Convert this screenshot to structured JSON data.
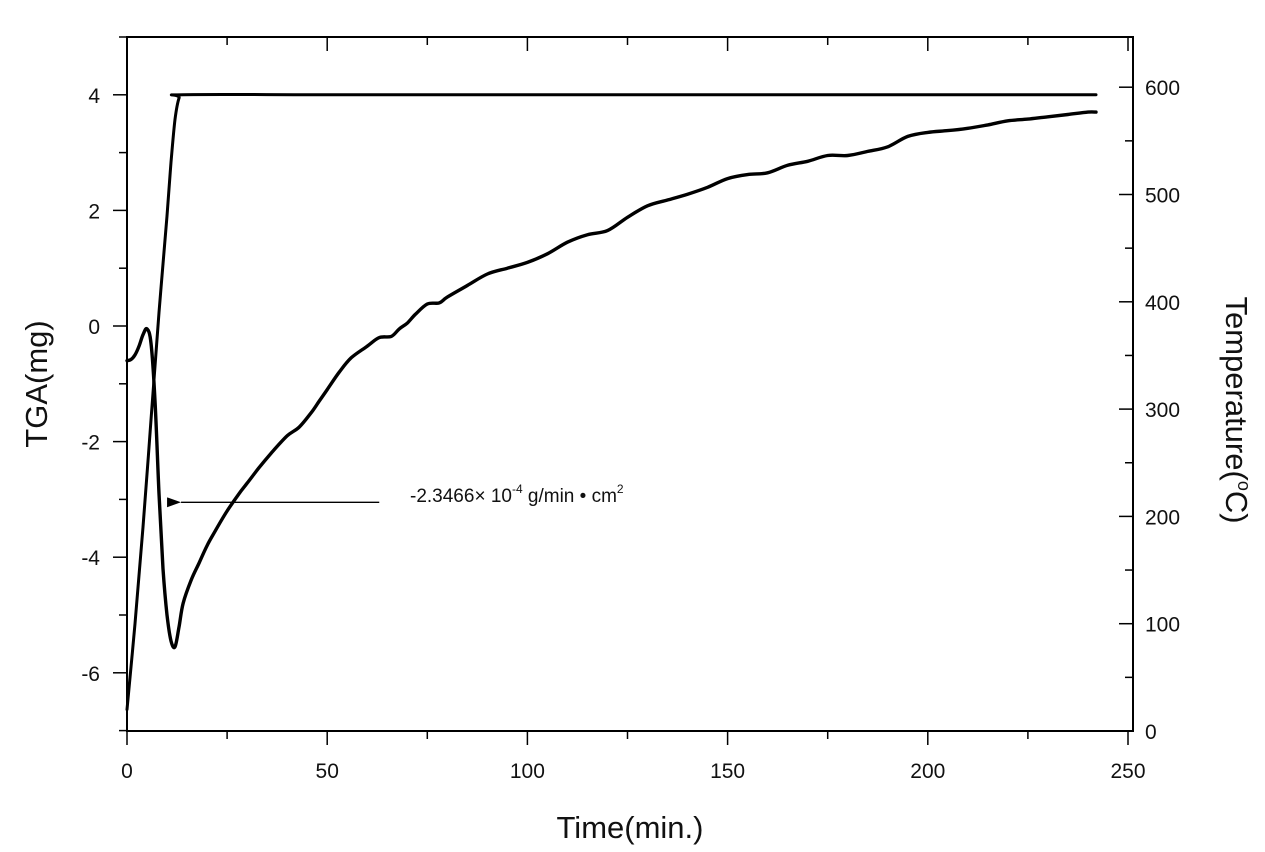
{
  "chart_data": {
    "type": "line",
    "title": "",
    "xlabel": "Time(min.)",
    "ylabel": "TGA(mg)",
    "y2label": "Temperature(°C)",
    "xlim": [
      0,
      250
    ],
    "ylim": [
      -7,
      5
    ],
    "y2lim": [
      0,
      650
    ],
    "grid": false,
    "legend": "none",
    "x_ticks": [
      0,
      50,
      100,
      150,
      200,
      250
    ],
    "x_tick_labels": [
      "0",
      "50",
      "100",
      "150",
      "200",
      "250"
    ],
    "y_ticks": [
      -6,
      -4,
      -2,
      0,
      2,
      4
    ],
    "y_tick_labels": [
      "-6",
      "-4",
      "-2",
      "0",
      "2",
      "4"
    ],
    "y2_ticks": [
      0,
      100,
      200,
      300,
      400,
      500,
      600
    ],
    "y2_tick_labels": [
      "0",
      "100",
      "200",
      "300",
      "400",
      "500",
      "600"
    ],
    "series": [
      {
        "name": "TGA",
        "axis": "left",
        "unit": "mg",
        "x": [
          0,
          1,
          2,
          3,
          4,
          5,
          6,
          7,
          8,
          9,
          10,
          11,
          12,
          13,
          14,
          16,
          18,
          20,
          22,
          25,
          28,
          30,
          33,
          36,
          40,
          43,
          46,
          48,
          50,
          53,
          56,
          60,
          63,
          66,
          68,
          70,
          72,
          75,
          78,
          80,
          85,
          90,
          95,
          100,
          105,
          110,
          115,
          120,
          125,
          130,
          135,
          140,
          145,
          150,
          155,
          160,
          165,
          170,
          175,
          180,
          185,
          190,
          195,
          200,
          205,
          210,
          215,
          220,
          225,
          230,
          235,
          240,
          242
        ],
        "y": [
          -0.6,
          -0.58,
          -0.5,
          -0.35,
          -0.15,
          -0.05,
          -0.3,
          -1.3,
          -2.9,
          -4.2,
          -5.0,
          -5.45,
          -5.55,
          -5.2,
          -4.8,
          -4.4,
          -4.1,
          -3.8,
          -3.55,
          -3.2,
          -2.9,
          -2.72,
          -2.45,
          -2.2,
          -1.9,
          -1.75,
          -1.5,
          -1.3,
          -1.1,
          -0.8,
          -0.55,
          -0.35,
          -0.2,
          -0.18,
          -0.05,
          0.05,
          0.2,
          0.38,
          0.4,
          0.5,
          0.7,
          0.9,
          1.0,
          1.1,
          1.25,
          1.45,
          1.58,
          1.65,
          1.88,
          2.08,
          2.18,
          2.28,
          2.4,
          2.55,
          2.62,
          2.65,
          2.78,
          2.85,
          2.95,
          2.95,
          3.02,
          3.1,
          3.28,
          3.35,
          3.38,
          3.42,
          3.48,
          3.55,
          3.58,
          3.62,
          3.66,
          3.7,
          3.7
        ]
      },
      {
        "name": "Temperature",
        "axis": "right",
        "unit": "°C",
        "x": [
          0,
          2,
          4,
          6,
          8,
          10,
          11,
          12,
          13,
          14,
          50,
          100,
          150,
          200,
          242
        ],
        "y": [
          20,
          100,
          190,
          290,
          390,
          480,
          530,
          570,
          590,
          593,
          593,
          593,
          593,
          593,
          593
        ]
      }
    ],
    "annotations": [
      {
        "text": "-2.3466× 10-4 g/min • cm2",
        "base": "-2.3466×  10",
        "exp1": "-4",
        "unit": " g/min • cm",
        "exp2": "2",
        "arrow_from": [
          63,
          -3.05
        ],
        "arrow_to": [
          13,
          -3.05
        ]
      }
    ]
  },
  "colors": {
    "line": "#000000",
    "axis": "#000000",
    "background": "#ffffff"
  }
}
